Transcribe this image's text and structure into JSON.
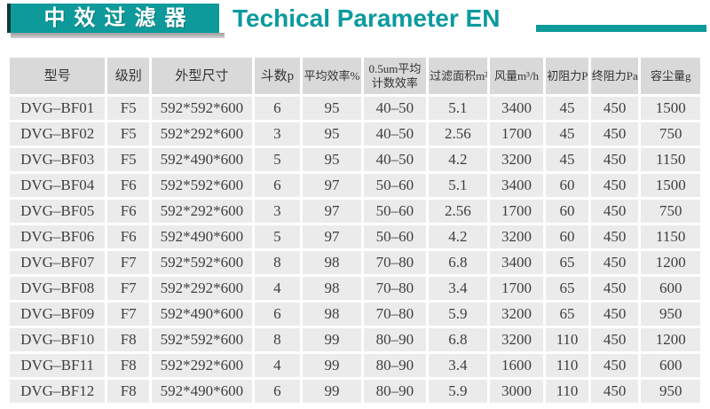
{
  "header": {
    "title_cn": "中效过滤器",
    "title_en": "Techical Parameter EN"
  },
  "colors": {
    "teal": "#0e9a9b",
    "title_text": "#ffffff",
    "header_cell_bg": "#d9d9d9",
    "data_cell_bg": "#ebebeb",
    "cell_text": "#3f3f3f",
    "shadow_gray": "#a9a9a9"
  },
  "table": {
    "columns": [
      {
        "key": "model",
        "label": "型号"
      },
      {
        "key": "grade",
        "label": "级别"
      },
      {
        "key": "size",
        "label": "外型尺寸"
      },
      {
        "key": "pockets",
        "label": "斗数p"
      },
      {
        "key": "avg-efficiency",
        "label": "平均效率%"
      },
      {
        "key": "count-efficiency",
        "label": "0.5um平均 计数效率"
      },
      {
        "key": "filter-area",
        "label": "过滤面积m²"
      },
      {
        "key": "airflow",
        "label": "风量m³/h"
      },
      {
        "key": "initial-resistance",
        "label": "初阻力Pa"
      },
      {
        "key": "final-resistance",
        "label": "终阻力Pa"
      },
      {
        "key": "dust-capacity",
        "label": "容尘量g"
      }
    ],
    "rows": [
      [
        "DVG–BF01",
        "F5",
        "592*592*600",
        "6",
        "95",
        "40–50",
        "5.1",
        "3400",
        "45",
        "450",
        "1500"
      ],
      [
        "DVG–BF02",
        "F5",
        "592*292*600",
        "3",
        "95",
        "40–50",
        "2.56",
        "1700",
        "45",
        "450",
        "750"
      ],
      [
        "DVG–BF03",
        "F5",
        "592*490*600",
        "5",
        "95",
        "40–50",
        "4.2",
        "3200",
        "45",
        "450",
        "1150"
      ],
      [
        "DVG–BF04",
        "F6",
        "592*592*600",
        "6",
        "97",
        "50–60",
        "5.1",
        "3400",
        "60",
        "450",
        "1500"
      ],
      [
        "DVG–BF05",
        "F6",
        "592*292*600",
        "3",
        "97",
        "50–60",
        "2.56",
        "1700",
        "60",
        "450",
        "750"
      ],
      [
        "DVG–BF06",
        "F6",
        "592*490*600",
        "5",
        "97",
        "50–60",
        "4.2",
        "3200",
        "60",
        "450",
        "1150"
      ],
      [
        "DVG–BF07",
        "F7",
        "592*592*600",
        "8",
        "98",
        "70–80",
        "6.8",
        "3400",
        "65",
        "450",
        "1200"
      ],
      [
        "DVG–BF08",
        "F7",
        "592*292*600",
        "4",
        "98",
        "70–80",
        "3.4",
        "1700",
        "65",
        "450",
        "600"
      ],
      [
        "DVG–BF09",
        "F7",
        "592*490*600",
        "6",
        "98",
        "70–80",
        "5.9",
        "3200",
        "65",
        "450",
        "950"
      ],
      [
        "DVG–BF10",
        "F8",
        "592*592*600",
        "8",
        "99",
        "80–90",
        "6.8",
        "3200",
        "110",
        "450",
        "1200"
      ],
      [
        "DVG–BF11",
        "F8",
        "592*292*600",
        "4",
        "99",
        "80–90",
        "3.4",
        "1600",
        "110",
        "450",
        "600"
      ],
      [
        "DVG–BF12",
        "F8",
        "592*490*600",
        "6",
        "99",
        "80–90",
        "5.9",
        "3000",
        "110",
        "450",
        "950"
      ]
    ]
  }
}
